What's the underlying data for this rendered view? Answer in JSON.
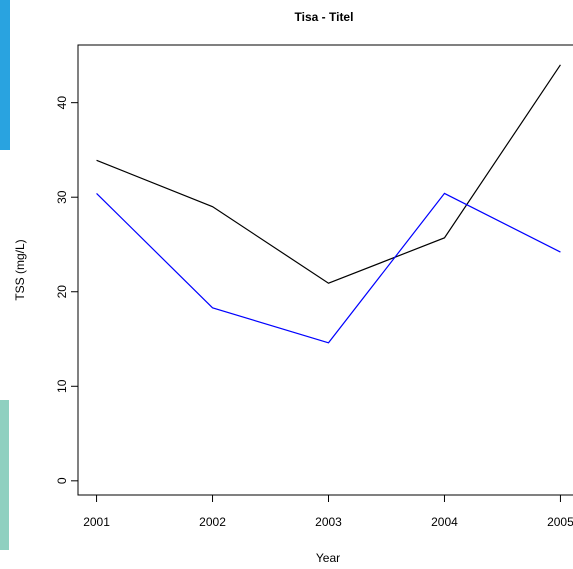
{
  "chart_data": {
    "type": "line",
    "title": "Tisa - Titel",
    "x_label": "Year",
    "y_label": "TSS (mg/L)",
    "x": [
      2001,
      2002,
      2003,
      2004,
      2005
    ],
    "series": [
      {
        "color": "#000000",
        "values": [
          33.9,
          29.0,
          20.9,
          25.7,
          44.0
        ]
      },
      {
        "color": "#0000ff",
        "values": [
          30.4,
          18.3,
          14.6,
          30.4,
          24.2
        ]
      }
    ],
    "xlim": [
      2000.84,
      2005.16
    ],
    "ylim": [
      -1.5,
      46.1
    ],
    "xticks": [
      2001,
      2002,
      2003,
      2004,
      2005
    ],
    "yticks": [
      0,
      10,
      20,
      30,
      40
    ]
  }
}
